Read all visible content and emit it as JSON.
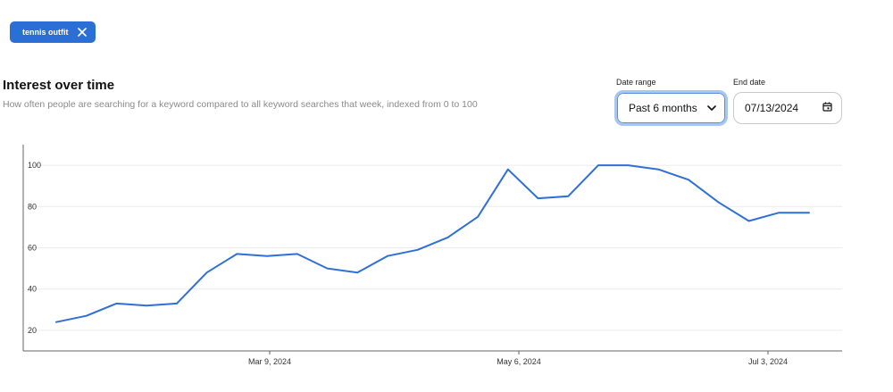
{
  "filter_chip": {
    "label": "tennis outfit",
    "icon": "close-icon"
  },
  "section": {
    "title": "Interest over time",
    "subtitle": "How often people are searching for a keyword compared to all keyword searches that week, indexed from 0 to 100"
  },
  "controls": {
    "date_range_label": "Date range",
    "date_range_value": "Past 6 months",
    "end_date_label": "End date",
    "end_date_value": "07/13/2024"
  },
  "colors": {
    "accent": "#2b6fd6",
    "line": "#2f6fd8",
    "focus_ring": "#a9c6f1"
  },
  "chart_data": {
    "type": "line",
    "title": "",
    "xlabel": "",
    "ylabel": "",
    "x_tick_labels": [
      "Mar 9, 2024",
      "May 6, 2024",
      "Jul 3, 2024"
    ],
    "y_tick_labels": [
      "20",
      "40",
      "60",
      "80",
      "100"
    ],
    "ylim": [
      10,
      110
    ],
    "grid": true,
    "series": [
      {
        "values": [
          24,
          27,
          33,
          32,
          33,
          48,
          57,
          56,
          57,
          50,
          48,
          56,
          59,
          65,
          75,
          98,
          84,
          85,
          100,
          100,
          98,
          93,
          82,
          73,
          77,
          77
        ]
      }
    ]
  }
}
